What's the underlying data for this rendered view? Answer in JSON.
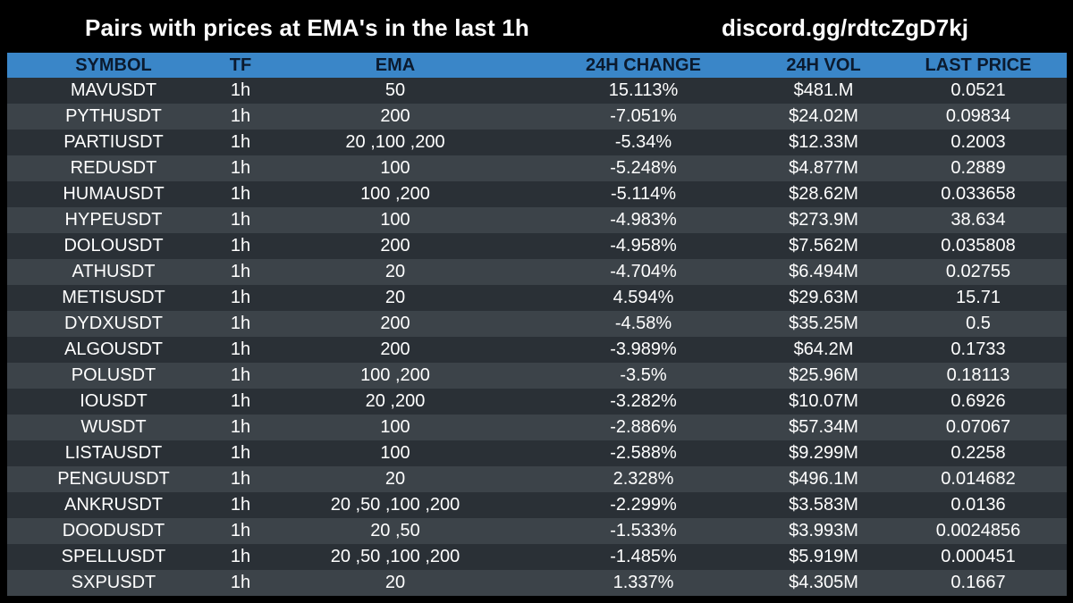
{
  "header": {
    "title": "Pairs with prices at EMA's in the last 1h",
    "discord": "discord.gg/rdtcZgD7kj"
  },
  "columns": {
    "symbol": "SYMBOL",
    "tf": "TF",
    "ema": "EMA",
    "change": "24H CHANGE",
    "volume": "24H VOL",
    "price": "LAST PRICE"
  },
  "rows": [
    {
      "symbol": "MAVUSDT",
      "tf": "1h",
      "ema": "50",
      "change": "15.113%",
      "volume": "$481.M",
      "price": "0.0521"
    },
    {
      "symbol": "PYTHUSDT",
      "tf": "1h",
      "ema": "200",
      "change": "-7.051%",
      "volume": "$24.02M",
      "price": "0.09834"
    },
    {
      "symbol": "PARTIUSDT",
      "tf": "1h",
      "ema": "20 ,100 ,200",
      "change": "-5.34%",
      "volume": "$12.33M",
      "price": "0.2003"
    },
    {
      "symbol": "REDUSDT",
      "tf": "1h",
      "ema": "100",
      "change": "-5.248%",
      "volume": "$4.877M",
      "price": "0.2889"
    },
    {
      "symbol": "HUMAUSDT",
      "tf": "1h",
      "ema": "100 ,200",
      "change": "-5.114%",
      "volume": "$28.62M",
      "price": "0.033658"
    },
    {
      "symbol": "HYPEUSDT",
      "tf": "1h",
      "ema": "100",
      "change": "-4.983%",
      "volume": "$273.9M",
      "price": "38.634"
    },
    {
      "symbol": "DOLOUSDT",
      "tf": "1h",
      "ema": "200",
      "change": "-4.958%",
      "volume": "$7.562M",
      "price": "0.035808"
    },
    {
      "symbol": "ATHUSDT",
      "tf": "1h",
      "ema": "20",
      "change": "-4.704%",
      "volume": "$6.494M",
      "price": "0.02755"
    },
    {
      "symbol": "METISUSDT",
      "tf": "1h",
      "ema": "20",
      "change": "4.594%",
      "volume": "$29.63M",
      "price": "15.71"
    },
    {
      "symbol": "DYDXUSDT",
      "tf": "1h",
      "ema": "200",
      "change": "-4.58%",
      "volume": "$35.25M",
      "price": "0.5"
    },
    {
      "symbol": "ALGOUSDT",
      "tf": "1h",
      "ema": "200",
      "change": "-3.989%",
      "volume": "$64.2M",
      "price": "0.1733"
    },
    {
      "symbol": "POLUSDT",
      "tf": "1h",
      "ema": "100 ,200",
      "change": "-3.5%",
      "volume": "$25.96M",
      "price": "0.18113"
    },
    {
      "symbol": "IOUSDT",
      "tf": "1h",
      "ema": "20 ,200",
      "change": "-3.282%",
      "volume": "$10.07M",
      "price": "0.6926"
    },
    {
      "symbol": "WUSDT",
      "tf": "1h",
      "ema": "100",
      "change": "-2.886%",
      "volume": "$57.34M",
      "price": "0.07067"
    },
    {
      "symbol": "LISTAUSDT",
      "tf": "1h",
      "ema": "100",
      "change": "-2.588%",
      "volume": "$9.299M",
      "price": "0.2258"
    },
    {
      "symbol": "PENGUUSDT",
      "tf": "1h",
      "ema": "20",
      "change": "2.328%",
      "volume": "$496.1M",
      "price": "0.014682"
    },
    {
      "symbol": "ANKRUSDT",
      "tf": "1h",
      "ema": "20 ,50 ,100 ,200",
      "change": "-2.299%",
      "volume": "$3.583M",
      "price": "0.0136"
    },
    {
      "symbol": "DOODUSDT",
      "tf": "1h",
      "ema": "20 ,50",
      "change": "-1.533%",
      "volume": "$3.993M",
      "price": "0.0024856"
    },
    {
      "symbol": "SPELLUSDT",
      "tf": "1h",
      "ema": "20 ,50 ,100 ,200",
      "change": "-1.485%",
      "volume": "$5.919M",
      "price": "0.000451"
    },
    {
      "symbol": "SXPUSDT",
      "tf": "1h",
      "ema": "20",
      "change": "1.337%",
      "volume": "$4.305M",
      "price": "0.1667"
    }
  ],
  "colors": {
    "background": "#000000",
    "header_bg": "#3a86c8",
    "header_text": "#0b1a2e",
    "row_dark": "#2a3036",
    "row_light": "#3c4349",
    "text": "#ffffff"
  }
}
